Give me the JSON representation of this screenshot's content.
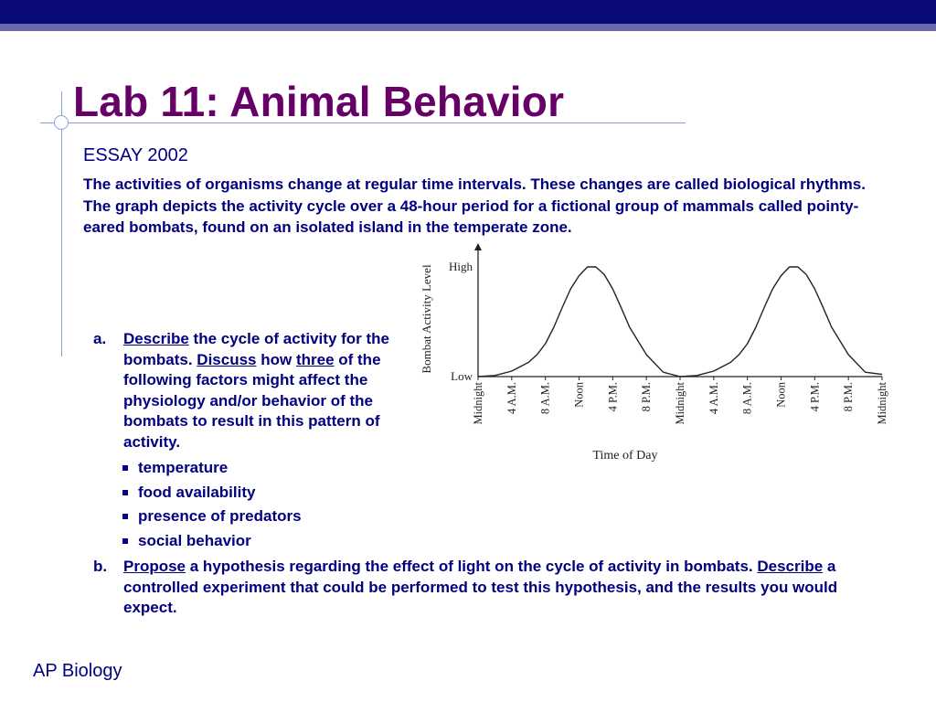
{
  "slide": {
    "title": "Lab 11: Animal Behavior",
    "subtitle": "ESSAY 2002",
    "intro": "The activities of organisms change at regular time intervals. These changes are called biological rhythms. The graph depicts the activity cycle over a 48-hour period for a fictional group of mammals called pointy-eared bombats, found on an isolated island in the temperate zone.",
    "item_a": {
      "marker": "a.",
      "describe": "Describe",
      "text1": " the cycle of activity for the bombats. ",
      "discuss": "Discuss",
      "text2": " how ",
      "three": "three",
      "text3": " of the following factors might affect the physiology and/or behavior of the bombats to result in this pattern of activity.",
      "factors": [
        "temperature",
        "food availability",
        "presence of predators",
        "social behavior"
      ]
    },
    "item_b": {
      "marker": "b.",
      "propose": "Propose",
      "text1": " a hypothesis regarding the effect of light on the cycle of activity in bombats. ",
      "describe": "Describe",
      "text2": " a controlled experiment that could be performed to test this hypothesis, and the results you would expect."
    },
    "footer": "AP Biology"
  },
  "chart_data": {
    "type": "line",
    "title": "",
    "xlabel": "Time of Day",
    "ylabel": "Bombat Activity Level",
    "x_ticks": [
      "Midnight",
      "4 A.M.",
      "8 A.M.",
      "Noon",
      "4 P.M.",
      "8 P.M.",
      "Midnight",
      "4 A.M.",
      "8 A.M.",
      "Noon",
      "4 P.M.",
      "8 P.M.",
      "Midnight"
    ],
    "y_ticks": [
      "Low",
      "High"
    ],
    "ylim": [
      0,
      1
    ],
    "x_hours": [
      0,
      2,
      4,
      6,
      7,
      8,
      9,
      10,
      11,
      12,
      13,
      14,
      15,
      16,
      17,
      18,
      20,
      22,
      24,
      26,
      28,
      30,
      31,
      32,
      33,
      34,
      35,
      36,
      37,
      38,
      39,
      40,
      41,
      42,
      44,
      46,
      48
    ],
    "activity": [
      0.0,
      0.01,
      0.05,
      0.13,
      0.2,
      0.3,
      0.45,
      0.63,
      0.8,
      0.92,
      1.0,
      1.0,
      0.93,
      0.8,
      0.63,
      0.45,
      0.2,
      0.04,
      0.0,
      0.01,
      0.05,
      0.13,
      0.2,
      0.3,
      0.45,
      0.63,
      0.8,
      0.92,
      1.0,
      1.0,
      0.93,
      0.8,
      0.63,
      0.45,
      0.2,
      0.04,
      0.02
    ],
    "grid": false,
    "legend": "none"
  }
}
